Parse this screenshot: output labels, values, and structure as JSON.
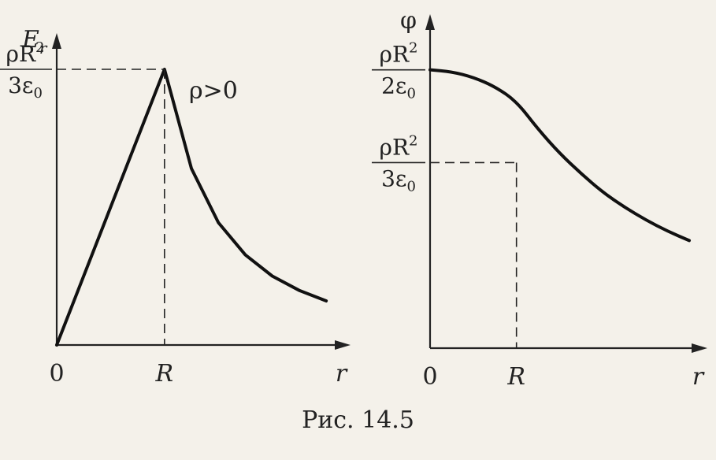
{
  "caption": "Рис. 14.5",
  "chart_data": [
    {
      "type": "line",
      "ylabel_main": "E",
      "ylabel_sub": "r",
      "xlabel": "r",
      "annotation": "ρ>0",
      "x_ticks": [
        {
          "label": "0",
          "value": 0
        },
        {
          "label": "R",
          "value": 1
        }
      ],
      "y_ticks": [
        {
          "num": "ρR",
          "sup": "2",
          "den": "3ε",
          "den_sub": "0",
          "value": 1
        }
      ],
      "series": [
        {
          "x": [
            0,
            0.5,
            1,
            1.25,
            1.5,
            1.75,
            2.0,
            2.25,
            2.5
          ],
          "y": [
            0,
            0.5,
            1,
            0.64,
            0.444,
            0.327,
            0.25,
            0.198,
            0.16
          ]
        }
      ],
      "xlim": [
        0,
        2.85
      ],
      "ylim": [
        0,
        1.2
      ]
    },
    {
      "type": "line",
      "ylabel": "φ",
      "xlabel": "r",
      "x_ticks": [
        {
          "label": "0",
          "value": 0
        },
        {
          "label": "R",
          "value": 1
        }
      ],
      "y_ticks": [
        {
          "num": "ρR",
          "sup": "2",
          "den": "2ε",
          "den_sub": "0",
          "value": 1.5
        },
        {
          "num": "ρR",
          "sup": "2",
          "den": "3ε",
          "den_sub": "0",
          "value": 1
        }
      ],
      "series": [
        {
          "x": [
            0,
            0.25,
            0.5,
            0.75,
            1,
            1.25,
            1.5,
            1.75,
            2.0,
            2.25,
            2.5,
            2.75,
            3.0
          ],
          "y": [
            1.5,
            1.49,
            1.46,
            1.41,
            1.33,
            1.18,
            1.05,
            0.94,
            0.84,
            0.76,
            0.69,
            0.63,
            0.58
          ]
        }
      ],
      "xlim": [
        0,
        3.1
      ],
      "ylim": [
        0,
        1.8
      ]
    }
  ]
}
